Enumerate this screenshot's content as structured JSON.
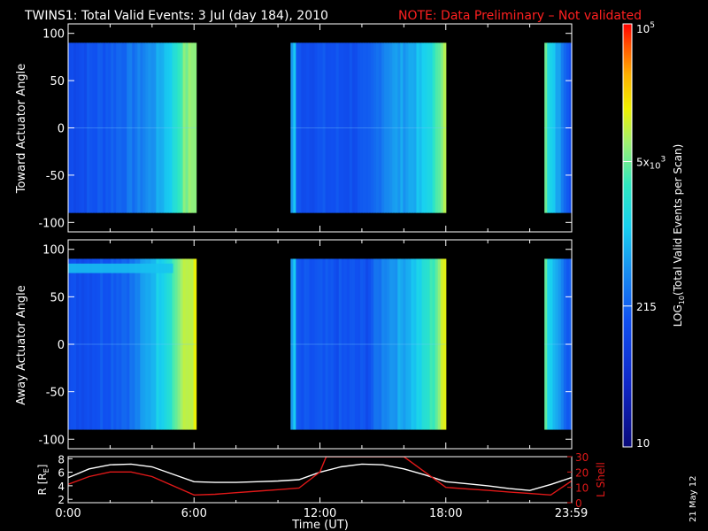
{
  "title": "TWINS1: Total Valid Events:  3 Jul (day 184), 2010",
  "note": "NOTE: Data Preliminary – Not validated",
  "date_stamp": "21 May 12",
  "colors": {
    "background": "#000000",
    "axes": "#ffffff",
    "note": "#ff2020",
    "r_line": "#ffffff",
    "lshell_line": "#e01818"
  },
  "colorbar": {
    "label": "LOG",
    "label_sub": "10",
    "label_rest": "(Total Valid  Events per Scan)",
    "ticks": [
      {
        "value": 10,
        "text": "10"
      },
      {
        "value": 215,
        "text": "215"
      },
      {
        "value": 5000,
        "text": "5x",
        "sup_base": "10",
        "sup": "3"
      },
      {
        "value": 100000,
        "text": "10",
        "sup": "5"
      }
    ],
    "range": [
      10,
      100000
    ],
    "scale": "log"
  },
  "chart_data": [
    {
      "type": "heatmap",
      "name": "toward",
      "ylabel": "Toward Actuator Angle",
      "ylim": [
        -110,
        110
      ],
      "yticks": [
        "100",
        "50",
        "0",
        "-50",
        "-100"
      ],
      "ytick_values": [
        100,
        50,
        0,
        -50,
        -100
      ],
      "xlim_hours": [
        0,
        24
      ],
      "data_ylim": [
        -90,
        90
      ],
      "segments": [
        {
          "start_hour": 0.0,
          "end_hour": 6.1,
          "profile": [
            [
              0,
              0.28
            ],
            [
              0.3,
              0.32
            ],
            [
              0.55,
              0.38
            ],
            [
              0.7,
              0.45
            ],
            [
              0.82,
              0.55
            ],
            [
              0.9,
              0.68
            ],
            [
              1.0,
              0.72
            ]
          ]
        },
        {
          "start_hour": 10.6,
          "end_hour": 18.0,
          "profile": [
            [
              0,
              0.3
            ],
            [
              0.02,
              0.6
            ],
            [
              0.04,
              0.3
            ],
            [
              0.5,
              0.3
            ],
            [
              0.62,
              0.42
            ],
            [
              0.75,
              0.45
            ],
            [
              0.85,
              0.5
            ],
            [
              0.93,
              0.6
            ],
            [
              1.0,
              0.78
            ]
          ]
        },
        {
          "start_hour": 22.7,
          "end_hour": 24.0,
          "profile": [
            [
              0,
              0.72
            ],
            [
              0.15,
              0.55
            ],
            [
              0.4,
              0.48
            ],
            [
              0.6,
              0.42
            ],
            [
              0.8,
              0.35
            ],
            [
              1.0,
              0.3
            ]
          ]
        }
      ]
    },
    {
      "type": "heatmap",
      "name": "away",
      "ylabel": "Away Actuator Angle",
      "ylim": [
        -110,
        110
      ],
      "yticks": [
        "100",
        "50",
        "0",
        "-50",
        "-100"
      ],
      "ytick_values": [
        100,
        50,
        0,
        -50,
        -100
      ],
      "xlim_hours": [
        0,
        24
      ],
      "data_ylim": [
        -90,
        90
      ],
      "segments": [
        {
          "start_hour": 0.0,
          "end_hour": 6.1,
          "profile": [
            [
              0,
              0.28
            ],
            [
              0.3,
              0.32
            ],
            [
              0.5,
              0.36
            ],
            [
              0.65,
              0.48
            ],
            [
              0.78,
              0.58
            ],
            [
              0.88,
              0.72
            ],
            [
              1.0,
              0.78
            ]
          ]
        },
        {
          "start_hour": 10.6,
          "end_hour": 18.0,
          "profile": [
            [
              0,
              0.3
            ],
            [
              0.02,
              0.6
            ],
            [
              0.04,
              0.3
            ],
            [
              0.5,
              0.3
            ],
            [
              0.62,
              0.42
            ],
            [
              0.75,
              0.47
            ],
            [
              0.85,
              0.55
            ],
            [
              0.93,
              0.65
            ],
            [
              1.0,
              0.8
            ]
          ]
        },
        {
          "start_hour": 22.7,
          "end_hour": 24.0,
          "profile": [
            [
              0,
              0.75
            ],
            [
              0.15,
              0.55
            ],
            [
              0.4,
              0.48
            ],
            [
              0.6,
              0.42
            ],
            [
              0.8,
              0.35
            ],
            [
              1.0,
              0.3
            ]
          ]
        }
      ],
      "high_band": {
        "y_range": [
          75,
          85
        ],
        "hours": [
          0.0,
          5.0
        ]
      }
    },
    {
      "type": "line",
      "name": "orbit",
      "xlabel": "Time (UT)",
      "xticks": [
        "0:00",
        "6:00",
        "12:00",
        "18:00",
        "23:59"
      ],
      "xtick_hours": [
        0,
        6,
        12,
        18,
        23.98
      ],
      "ylabel_left": "R [R",
      "ylabel_left_sub": "E",
      "ylabel_left_end": "]",
      "ylabel_right": "L Shell",
      "yticks_left": [
        "8",
        "6",
        "4",
        "2"
      ],
      "ylim_left": [
        1.5,
        8.3
      ],
      "yticks_right": [
        "30",
        "20",
        "10",
        "0"
      ],
      "ylim_right": [
        0,
        30
      ],
      "series": [
        {
          "name": "R [RE]",
          "axis": "left",
          "x": [
            0,
            1,
            2,
            3,
            4,
            5,
            6,
            7,
            8,
            9,
            10,
            11,
            12,
            13,
            14,
            15,
            16,
            17,
            18,
            19,
            20,
            21,
            22,
            23,
            23.98
          ],
          "values": [
            5.2,
            6.5,
            7.1,
            7.2,
            6.8,
            5.7,
            4.6,
            4.5,
            4.5,
            4.6,
            4.7,
            4.9,
            6.0,
            6.8,
            7.2,
            7.1,
            6.5,
            5.6,
            4.6,
            4.3,
            4.0,
            3.6,
            3.3,
            4.2,
            5.2
          ]
        },
        {
          "name": "L Shell",
          "axis": "right",
          "x": [
            0,
            1,
            2,
            3,
            4,
            5,
            6,
            7,
            8,
            9,
            10,
            11,
            12,
            12.3,
            16.0,
            17,
            18,
            19,
            20,
            21,
            22,
            23,
            23.98
          ],
          "values": [
            12,
            17,
            20,
            20,
            17,
            11,
            5,
            5.5,
            6.5,
            7.5,
            8.5,
            9.5,
            20,
            30,
            30,
            20,
            10,
            9,
            8,
            7,
            6,
            5,
            14
          ]
        }
      ]
    }
  ]
}
